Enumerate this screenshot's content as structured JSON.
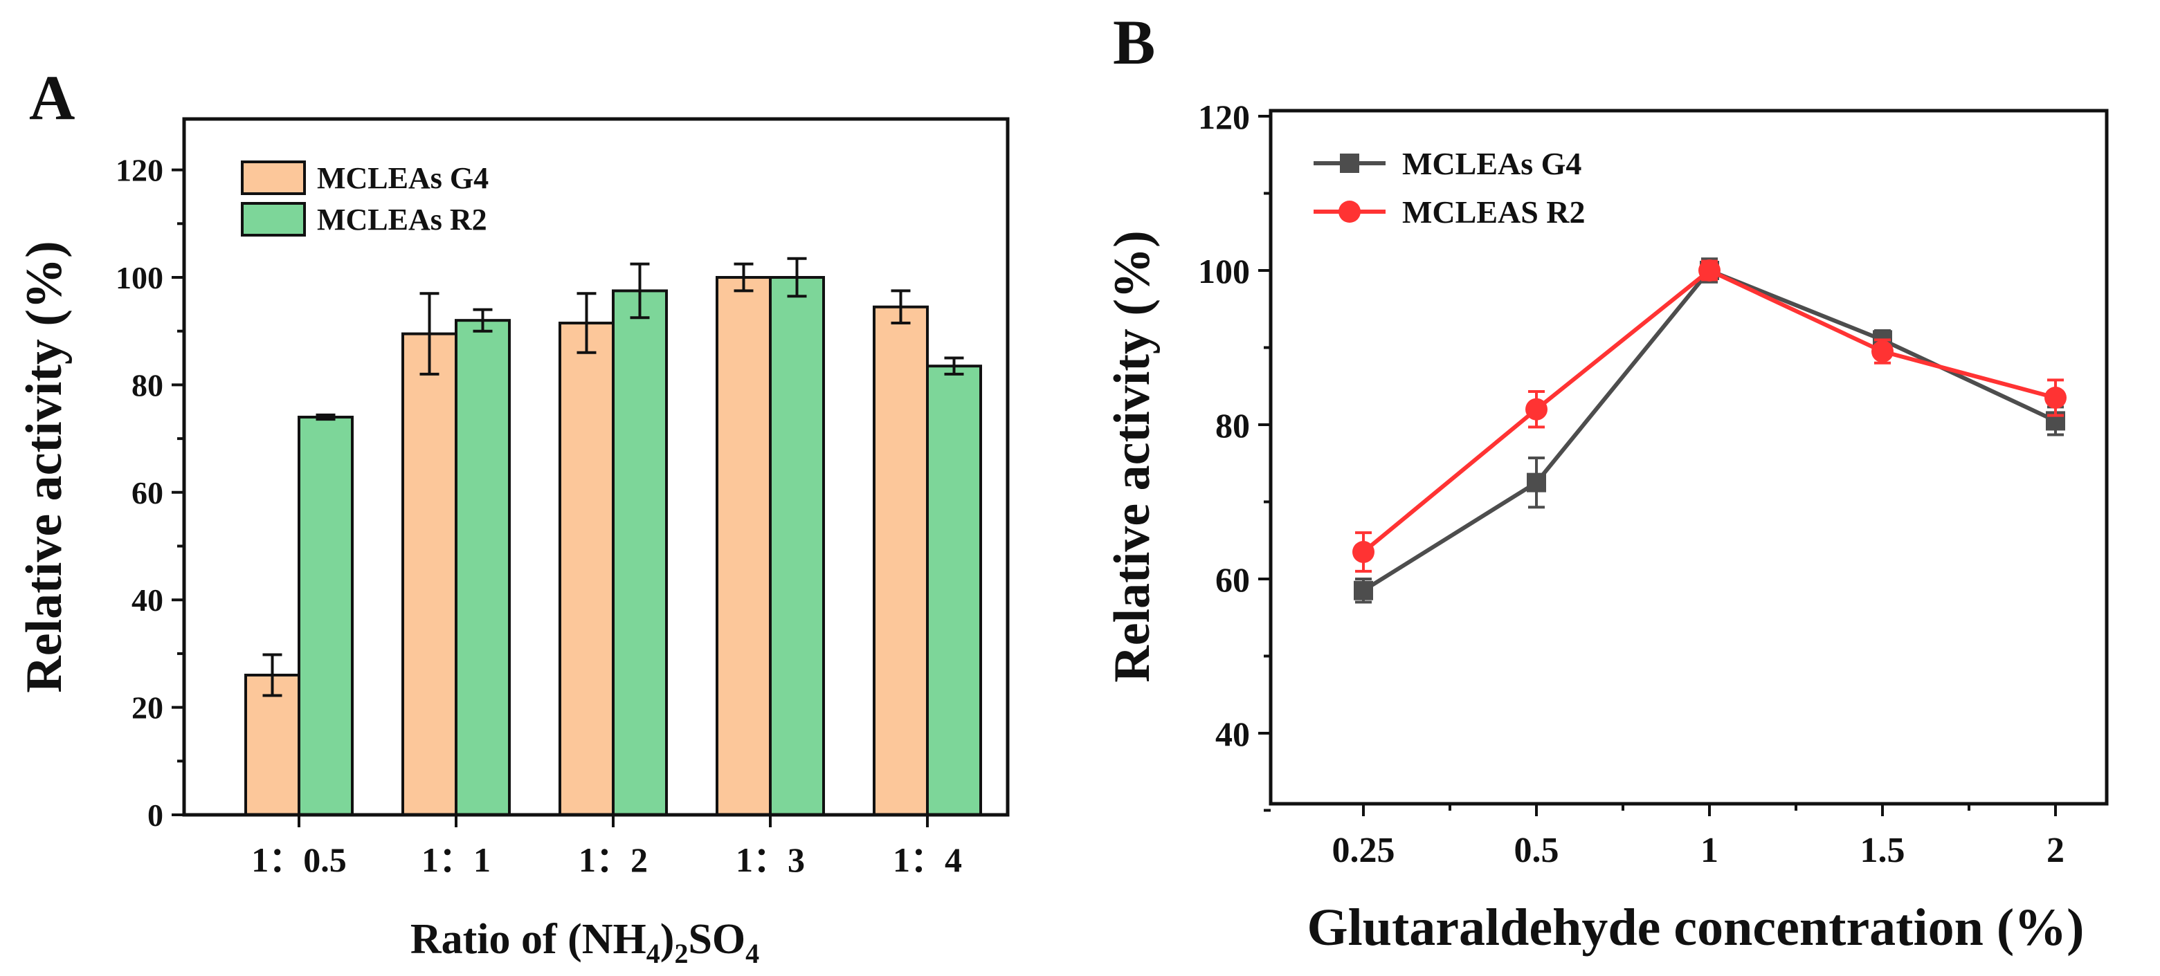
{
  "chart_data": [
    {
      "panel_label": "A",
      "type": "bar",
      "ylabel": "Relative activity (%)",
      "xlabel_parts": [
        "Ratio of (NH",
        "4",
        ")",
        "2",
        "SO",
        "4"
      ],
      "ylim": [
        0,
        130
      ],
      "yticks": [
        "0",
        "20",
        "40",
        "60",
        "80",
        "100",
        "120"
      ],
      "categories": [
        "1：0.5",
        "1：1",
        "1：2",
        "1：3",
        "1：4"
      ],
      "legend_position": "top-left",
      "series": [
        {
          "name": "MCLEAs G4",
          "color": "#fcc79a",
          "values": [
            26,
            89.5,
            91.5,
            100,
            94.5
          ],
          "errors": [
            3.8,
            7.5,
            5.5,
            2.5,
            3
          ]
        },
        {
          "name": "MCLEAs R2",
          "color": "#7dd699",
          "values": [
            74,
            92,
            97.5,
            100,
            83.5
          ],
          "errors": [
            0.4,
            2,
            5,
            3.5,
            1.5
          ]
        }
      ]
    },
    {
      "panel_label": "B",
      "type": "line",
      "ylabel": "Relative activity (%)",
      "xlabel": "Glutaraldehyde concentration (%)",
      "ylim": [
        30,
        120
      ],
      "yticks": [
        "40",
        "60",
        "80",
        "100",
        "120"
      ],
      "categories": [
        "0.25",
        "0.5",
        "1",
        "1.5",
        "2"
      ],
      "legend_position": "top-left",
      "series": [
        {
          "name": "MCLEAs G4",
          "color": "#4d4d4d",
          "marker": "square",
          "values": [
            58.5,
            72.5,
            100,
            91,
            80.5
          ],
          "errors": [
            1.5,
            3.2,
            1.5,
            1.2,
            1.8
          ]
        },
        {
          "name": "MCLEAS R2",
          "color": "#ff3333",
          "marker": "circle",
          "values": [
            63.5,
            82,
            100,
            89.5,
            83.5
          ],
          "errors": [
            2.5,
            2.3,
            1.2,
            1.5,
            2.3
          ]
        }
      ]
    }
  ]
}
